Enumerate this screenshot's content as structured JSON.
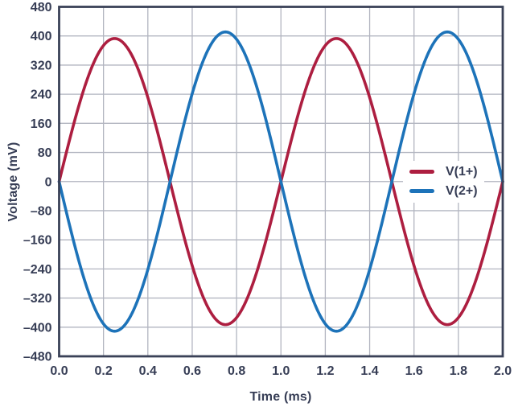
{
  "chart_data": {
    "type": "line",
    "title": "",
    "xlabel": "Time (ms)",
    "ylabel": "Voltage (mV)",
    "xlim": [
      0.0,
      2.0
    ],
    "ylim": [
      -480,
      480
    ],
    "grid": true,
    "legend_position": "center-right",
    "x_ticks": [
      0.0,
      0.2,
      0.4,
      0.6,
      0.8,
      1.0,
      1.2,
      1.4,
      1.6,
      1.8,
      2.0
    ],
    "x_tick_labels": [
      "0.0",
      "0.2",
      "0.4",
      "0.6",
      "0.8",
      "1.0",
      "1.2",
      "1.4",
      "1.6",
      "1.8",
      "2.0"
    ],
    "y_ticks": [
      480,
      400,
      320,
      240,
      160,
      80,
      0,
      -80,
      -160,
      -240,
      -320,
      -400,
      -480
    ],
    "y_tick_labels": [
      "480",
      "400",
      "320",
      "240",
      "160",
      "80",
      "0",
      "–80",
      "–160",
      "–240",
      "–320",
      "–400",
      "–480"
    ],
    "series": [
      {
        "name": "V(1+)",
        "color": "#ad1e40",
        "waveform": "sine",
        "amplitude_mV": 393,
        "period_ms": 1.0,
        "phase_deg": 0,
        "key_points": [
          [
            0.0,
            0
          ],
          [
            0.25,
            393
          ],
          [
            0.5,
            0
          ],
          [
            0.75,
            -393
          ],
          [
            1.0,
            0
          ],
          [
            1.25,
            393
          ],
          [
            1.5,
            0
          ],
          [
            1.75,
            -393
          ],
          [
            2.0,
            0
          ]
        ]
      },
      {
        "name": "V(2+)",
        "color": "#1d73b9",
        "waveform": "sine",
        "amplitude_mV": 411,
        "period_ms": 1.0,
        "phase_deg": 180,
        "key_points": [
          [
            0.0,
            0
          ],
          [
            0.25,
            -411
          ],
          [
            0.5,
            0
          ],
          [
            0.75,
            411
          ],
          [
            1.0,
            0
          ],
          [
            1.25,
            -411
          ],
          [
            1.5,
            0
          ],
          [
            1.75,
            411
          ],
          [
            2.0,
            0
          ]
        ]
      }
    ]
  },
  "colors": {
    "background": "#ffffff",
    "axis_frame": "#3a4157",
    "tick_text": "#363d55",
    "gridline": "#b2b5c0",
    "series_1": "#ad1e40",
    "series_2": "#1d73b9"
  },
  "legend": {
    "items": [
      {
        "label": "V(1+)"
      },
      {
        "label": "V(2+)"
      }
    ]
  }
}
